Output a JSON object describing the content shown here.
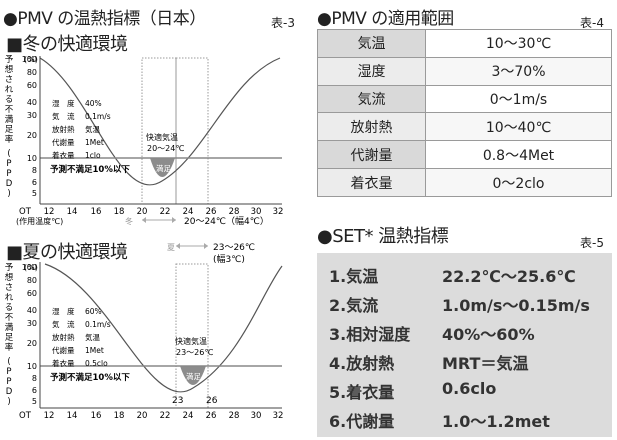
{
  "left_panel": {
    "title": "●PMV の温熱指標（日本）",
    "table_label": "表-3",
    "winter": {
      "heading": "■冬の快適環境",
      "y_axis_label": [
        "予",
        "想",
        "さ",
        "れ",
        "る",
        "不",
        "満",
        "足",
        "率"
      ],
      "y_axis_paren": [
        "(",
        "P",
        "P",
        "D",
        ")"
      ],
      "y_unit": "(%)",
      "y_ticks": [
        "100",
        "80",
        "60",
        "40",
        "30",
        "20",
        "10",
        "8",
        "6",
        "5"
      ],
      "conditions": [
        {
          "k": "湿　度",
          "v": "40%"
        },
        {
          "k": "気　流",
          "v": "0.1m/s"
        },
        {
          "k": "放射熱",
          "v": "気温"
        },
        {
          "k": "代謝量",
          "v": "1Met"
        },
        {
          "k": "着衣量",
          "v": "1clo"
        }
      ],
      "comfort_title": "快適気温",
      "comfort_range": "20～24℃",
      "satisfied_label": "満足",
      "threshold_label": "予測不満足10%以下",
      "x_ticks": [
        "OT",
        "12",
        "14",
        "16",
        "18",
        "20",
        "22",
        "24",
        "26",
        "28",
        "30",
        "32"
      ],
      "x_axis_caption": "(作用温度℃)",
      "season_mark": "冬",
      "range_note": "20～24℃（幅4℃）"
    },
    "summer": {
      "heading": "■夏の快適環境",
      "y_axis_label": [
        "予",
        "想",
        "さ",
        "れ",
        "る",
        "不",
        "満",
        "足",
        "率"
      ],
      "y_axis_paren": [
        "(",
        "P",
        "P",
        "D",
        ")"
      ],
      "y_unit": "(%)",
      "y_ticks": [
        "100",
        "80",
        "60",
        "40",
        "30",
        "20",
        "10",
        "8",
        "6",
        "5"
      ],
      "conditions": [
        {
          "k": "湿　度",
          "v": "60%"
        },
        {
          "k": "気　流",
          "v": "0.1m/s"
        },
        {
          "k": "放射熱",
          "v": "気温"
        },
        {
          "k": "代謝量",
          "v": "1Met"
        },
        {
          "k": "着衣量",
          "v": "0.5clo"
        }
      ],
      "comfort_title": "快適気温",
      "comfort_range": "23～26℃",
      "satisfied_label": "満足",
      "threshold_label": "予測不満足10%以下",
      "x_ticks": [
        "OT",
        "12",
        "14",
        "16",
        "18",
        "20",
        "22",
        "24",
        "26",
        "28",
        "30",
        "32"
      ],
      "bottom_marks": [
        "23",
        "26"
      ],
      "season_mark": "夏",
      "range_note": "23～26℃",
      "range_note2": "(幅3℃)"
    }
  },
  "table4": {
    "title": "●PMV の適用範囲",
    "label": "表-4",
    "rows": [
      {
        "k": "気温",
        "v": "10～30℃"
      },
      {
        "k": "湿度",
        "v": "3～70%"
      },
      {
        "k": "気流",
        "v": "0～1m/s"
      },
      {
        "k": "放射熱",
        "v": "10～40℃"
      },
      {
        "k": "代謝量",
        "v": "0.8～4Met"
      },
      {
        "k": "着衣量",
        "v": "0～2clo"
      }
    ]
  },
  "table5": {
    "title": "●SET* 温熱指標",
    "label": "表-5",
    "rows": [
      {
        "k": "1.気温",
        "v": "22.2℃～25.6℃"
      },
      {
        "k": "2.気流",
        "v": "1.0m/s～0.15m/s"
      },
      {
        "k": "3.相対湿度",
        "v": "40%～60%"
      },
      {
        "k": "4.放射熱",
        "v": "MRT＝気温"
      },
      {
        "k": "5.着衣量",
        "v": "0.6clo"
      },
      {
        "k": "6.代謝量",
        "v": "1.0～1.2met"
      }
    ]
  },
  "colors": {
    "fill_satisfied": "#8c8c8c",
    "table_gray": "#d9d9d9",
    "line": "#555555"
  }
}
